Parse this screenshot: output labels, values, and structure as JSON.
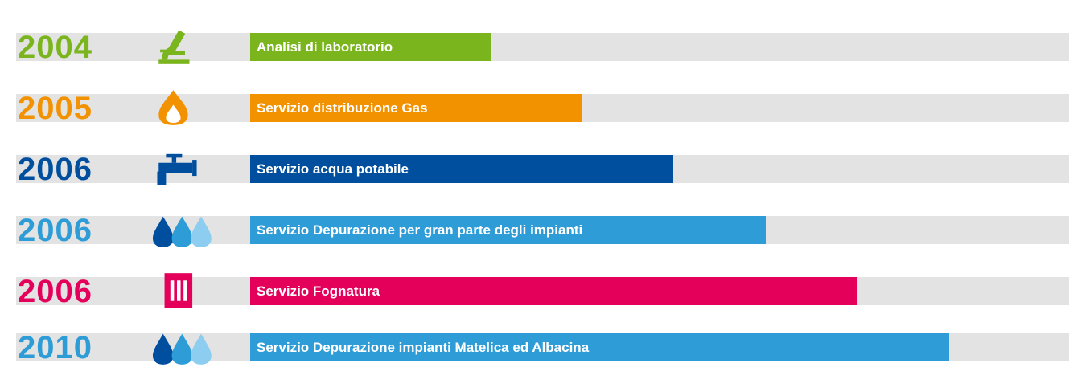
{
  "rows": [
    {
      "year": "2004",
      "label": "Analisi di laboratorio",
      "color": "#7ab51d"
    },
    {
      "year": "2005",
      "label": "Servizio distribuzione Gas",
      "color": "#f39200"
    },
    {
      "year": "2006",
      "label": "Servizio acqua potabile",
      "color": "#004f9f"
    },
    {
      "year": "2006",
      "label": "Servizio Depurazione per gran parte degli impianti",
      "color": "#2d9cd7"
    },
    {
      "year": "2006",
      "label": "Servizio Fognatura",
      "color": "#e4005a"
    },
    {
      "year": "2010",
      "label": "Servizio Depurazione impianti Matelica ed Albacina",
      "color": "#2d9cd7"
    }
  ]
}
